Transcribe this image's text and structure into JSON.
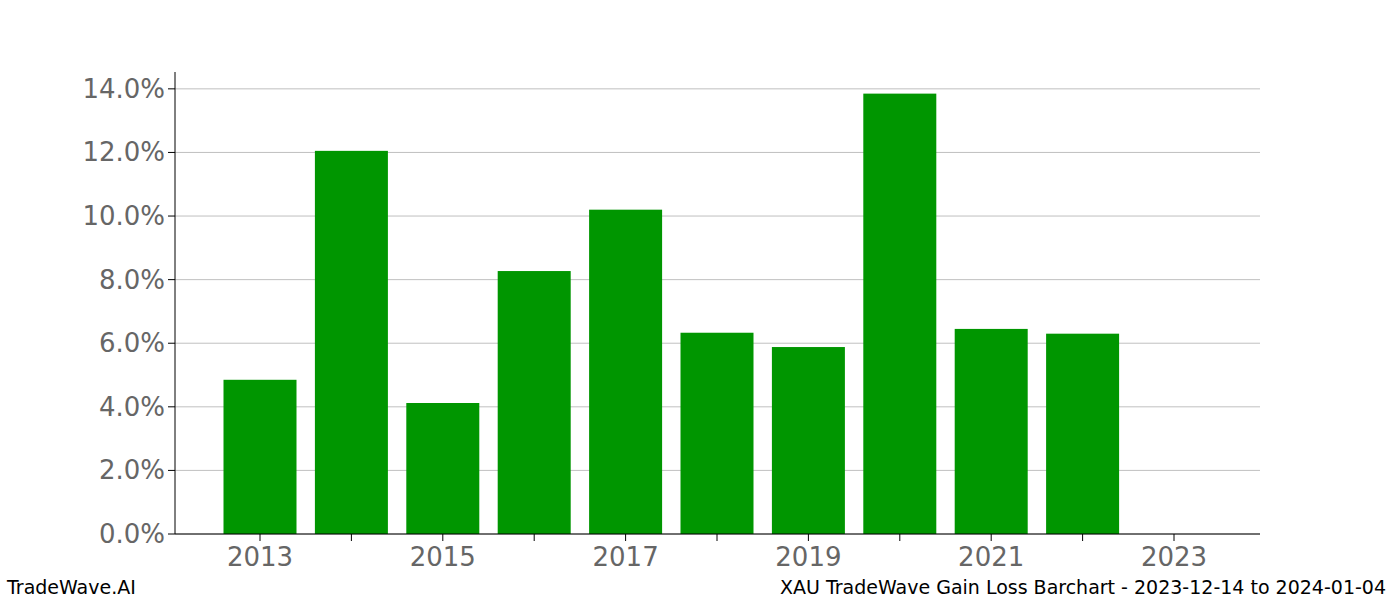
{
  "chart_data": {
    "type": "bar",
    "title": "XAU TradeWave Gain Loss Barchart - 2023-12-14 to 2024-01-04",
    "source": "TradeWave.AI",
    "categories": [
      "2013",
      null,
      "2015",
      null,
      "2017",
      null,
      "2019",
      null,
      "2021",
      null,
      "2023"
    ],
    "values": [
      4.85,
      12.05,
      4.12,
      8.27,
      10.2,
      6.33,
      5.88,
      13.85,
      6.45,
      6.3,
      null
    ],
    "color": "#009600",
    "ylim": [
      0,
      14.53
    ],
    "yticks": [
      {
        "value": 0,
        "label": "0.0%"
      },
      {
        "value": 2,
        "label": "2.0%"
      },
      {
        "value": 4,
        "label": "4.0%"
      },
      {
        "value": 6,
        "label": "6.0%"
      },
      {
        "value": 8,
        "label": "8.0%"
      },
      {
        "value": 10,
        "label": "10.0%"
      },
      {
        "value": 12,
        "label": "12.0%"
      },
      {
        "value": 14,
        "label": "14.0%"
      }
    ],
    "grid": true
  }
}
